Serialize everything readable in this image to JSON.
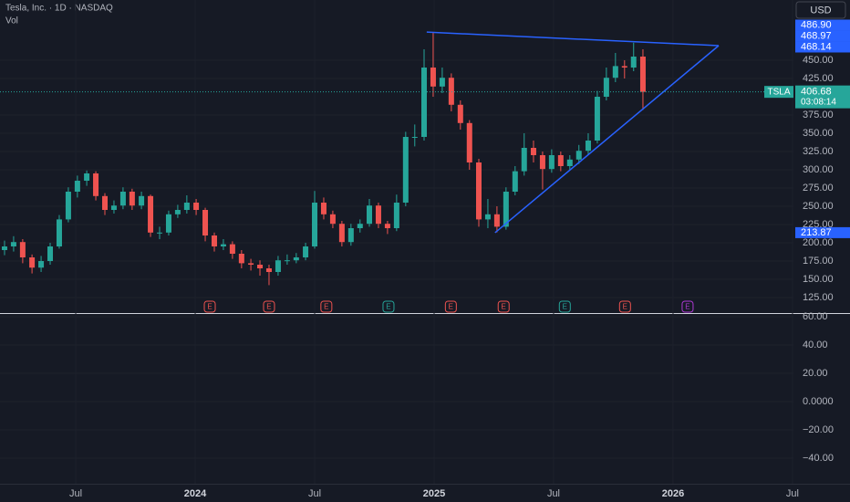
{
  "chart_data": [
    {
      "type": "candlestick",
      "title": "Tesla, Inc. · 1D · NASDAQ",
      "subtitle": "Vol",
      "currency": "USD",
      "x": [
        2023.202,
        2023.24,
        2023.278,
        2023.317,
        2023.355,
        2023.393,
        2023.431,
        2023.469,
        2023.507,
        2023.546,
        2023.584,
        2023.622,
        2023.66,
        2023.698,
        2023.736,
        2023.775,
        2023.813,
        2023.851,
        2023.889,
        2023.927,
        2023.965,
        2024.004,
        2024.042,
        2024.08,
        2024.118,
        2024.156,
        2024.194,
        2024.233,
        2024.271,
        2024.309,
        2024.347,
        2024.385,
        2024.423,
        2024.462,
        2024.5,
        2024.538,
        2024.576,
        2024.614,
        2024.652,
        2024.69,
        2024.729,
        2024.767,
        2024.805,
        2024.843,
        2024.881,
        2024.919,
        2024.958,
        2024.996,
        2025.034,
        2025.072,
        2025.11,
        2025.148,
        2025.187,
        2025.225,
        2025.263,
        2025.301,
        2025.339,
        2025.377,
        2025.416,
        2025.454,
        2025.492,
        2025.53,
        2025.568,
        2025.606,
        2025.645,
        2025.683,
        2025.721,
        2025.759,
        2025.797,
        2025.835,
        2025.874
      ],
      "open": [
        190,
        195,
        201,
        180,
        166,
        175,
        195,
        232,
        270,
        285,
        295,
        264,
        245,
        251,
        270,
        251,
        264,
        214,
        214,
        239,
        245,
        255,
        245,
        210,
        195,
        198,
        185,
        172,
        170,
        165,
        160,
        176,
        176,
        180,
        195,
        255,
        239,
        226,
        201,
        220,
        226,
        251,
        226,
        220,
        255,
        345,
        345,
        440,
        414,
        426,
        389,
        364,
        310,
        232,
        239,
        222,
        270,
        298,
        330,
        320,
        301,
        320,
        305,
        314,
        326,
        340,
        400,
        426,
        442,
        440,
        455
      ],
      "high": [
        203,
        209,
        205,
        184,
        182,
        200,
        238,
        276,
        292,
        299,
        298,
        268,
        258,
        276,
        274,
        270,
        266,
        222,
        244,
        252,
        265,
        260,
        248,
        214,
        205,
        202,
        190,
        178,
        176,
        170,
        182,
        184,
        186,
        200,
        271,
        262,
        244,
        230,
        226,
        232,
        260,
        255,
        230,
        266,
        352,
        362,
        465,
        488.54,
        440,
        432,
        395,
        368,
        315,
        260,
        250,
        276,
        305,
        350,
        340,
        325,
        328,
        325,
        320,
        334,
        350,
        408,
        440,
        460,
        450,
        474,
        465
      ],
      "low": [
        183,
        188,
        172,
        158,
        160,
        170,
        192,
        228,
        262,
        278,
        258,
        238,
        240,
        246,
        245,
        246,
        208,
        205,
        210,
        234,
        240,
        238,
        202,
        188,
        190,
        178,
        165,
        162,
        155,
        142,
        155,
        170,
        172,
        176,
        192,
        232,
        220,
        195,
        196,
        214,
        222,
        220,
        212,
        216,
        250,
        332,
        340,
        400,
        405,
        380,
        355,
        300,
        222,
        220,
        214.25,
        218,
        265,
        292,
        310,
        273,
        296,
        298,
        300,
        308,
        320,
        336,
        395,
        420,
        425,
        435,
        382
      ],
      "close": [
        195,
        201,
        180,
        166,
        175,
        195,
        232,
        270,
        285,
        295,
        264,
        245,
        251,
        270,
        251,
        264,
        214,
        214,
        239,
        245,
        255,
        245,
        210,
        195,
        198,
        185,
        172,
        170,
        165,
        160,
        176,
        176,
        180,
        195,
        255,
        239,
        226,
        201,
        220,
        226,
        251,
        226,
        220,
        255,
        345,
        345,
        440,
        414,
        426,
        389,
        364,
        310,
        232,
        239,
        222,
        270,
        298,
        330,
        320,
        301,
        320,
        305,
        314,
        326,
        340,
        400,
        426,
        442,
        440,
        455,
        406.68
      ],
      "up_color": "#26a69a",
      "down_color": "#ef5350",
      "xlim": [
        2023.183,
        2026.504
      ],
      "xticks": [
        {
          "value": 2023.5,
          "label": "Jul"
        },
        {
          "value": 2024,
          "label": "2024"
        },
        {
          "value": 2024.5,
          "label": "Jul"
        },
        {
          "value": 2025,
          "label": "2025"
        },
        {
          "value": 2025.5,
          "label": "Jul"
        },
        {
          "value": 2026,
          "label": "2026"
        },
        {
          "value": 2026.5,
          "label": "Jul"
        }
      ],
      "ylim": [
        103.75,
        532.5
      ],
      "yticks": [
        {
          "value": 125,
          "label": "125.00"
        },
        {
          "value": 150,
          "label": "150.00"
        },
        {
          "value": 175,
          "label": "175.00"
        },
        {
          "value": 200,
          "label": "200.00"
        },
        {
          "value": 225,
          "label": "225.00"
        },
        {
          "value": 250,
          "label": "250.00"
        },
        {
          "value": 275,
          "label": "275.00"
        },
        {
          "value": 300,
          "label": "300.00"
        },
        {
          "value": 325,
          "label": "325.00"
        },
        {
          "value": 350,
          "label": "350.00"
        },
        {
          "value": 375,
          "label": "375.00"
        },
        {
          "value": 425,
          "label": "425.00"
        },
        {
          "value": 450,
          "label": "450.00"
        }
      ],
      "grid": true,
      "trendlines": [
        {
          "x": [
            2024.969,
            2026.191
          ],
          "y": [
            488.54,
            470
          ],
          "color": "#2962ff"
        },
        {
          "x": [
            2025.255,
            2026.191
          ],
          "y": [
            213.87,
            470
          ],
          "color": "#2962ff"
        }
      ],
      "price_badges": [
        {
          "value": 486.9,
          "label": "486.90",
          "color": "#2962ff"
        },
        {
          "value": 468.97,
          "label": "468.97",
          "color": "#2962ff"
        },
        {
          "value": 468.14,
          "label": "468.14",
          "color": "#2962ff"
        },
        {
          "value": 213.87,
          "label": "213.87",
          "color": "#2962ff"
        }
      ],
      "last_price": {
        "value": 406.68,
        "label": "406.68",
        "symbol": "TSLA",
        "countdown": "03:08:14",
        "color": "#26a69a"
      },
      "events": [
        {
          "x": 2024.061,
          "label": "E",
          "color": "#ef5350"
        },
        {
          "x": 2024.309,
          "label": "E",
          "color": "#ef5350"
        },
        {
          "x": 2024.549,
          "label": "E",
          "color": "#ef5350"
        },
        {
          "x": 2024.809,
          "label": "E",
          "color": "#26a69a"
        },
        {
          "x": 2025.07,
          "label": "E",
          "color": "#ef5350"
        },
        {
          "x": 2025.291,
          "label": "E",
          "color": "#ef5350"
        },
        {
          "x": 2025.547,
          "label": "E",
          "color": "#26a69a"
        },
        {
          "x": 2025.799,
          "label": "E",
          "color": "#ef5350"
        },
        {
          "x": 2026.061,
          "label": "E",
          "color": "#b03ad6"
        }
      ]
    },
    {
      "type": "pane",
      "ylim": [
        -58.06,
        62.58
      ],
      "yticks": [
        {
          "value": -40,
          "label": "−40.00"
        },
        {
          "value": -20,
          "label": "−20.00"
        },
        {
          "value": 0,
          "label": "0.0000"
        },
        {
          "value": 20,
          "label": "20.00"
        },
        {
          "value": 40,
          "label": "40.00"
        },
        {
          "value": 60,
          "label": "60.00"
        }
      ]
    }
  ]
}
